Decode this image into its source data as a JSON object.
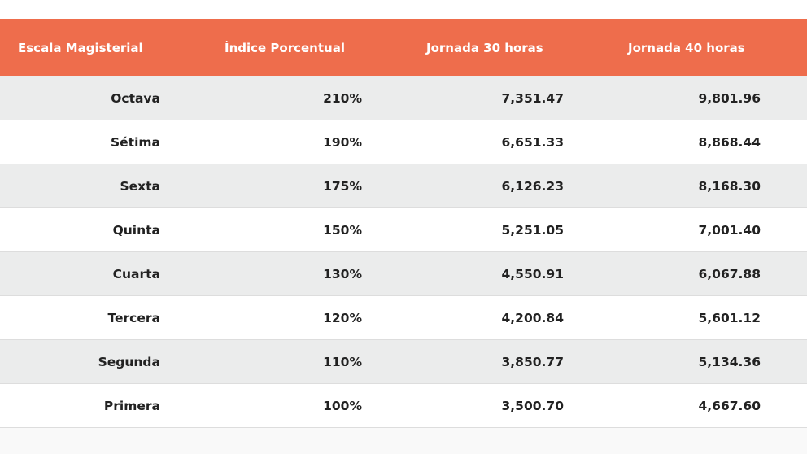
{
  "table": {
    "columns": [
      "Escala Magisterial",
      "Índice Porcentual",
      "Jornada 30 horas",
      "Jornada 40 horas"
    ],
    "rows": [
      [
        "Octava",
        "210%",
        "7,351.47",
        "9,801.96"
      ],
      [
        "Sétima",
        "190%",
        "6,651.33",
        "8,868.44"
      ],
      [
        "Sexta",
        "175%",
        "6,126.23",
        "8,168.30"
      ],
      [
        "Quinta",
        "150%",
        "5,251.05",
        "7,001.40"
      ],
      [
        "Cuarta",
        "130%",
        "4,550.91",
        "6,067.88"
      ],
      [
        "Tercera",
        "120%",
        "4,200.84",
        "5,601.12"
      ],
      [
        "Segunda",
        "110%",
        "3,850.77",
        "5,134.36"
      ],
      [
        "Primera",
        "100%",
        "3,500.70",
        "4,667.60"
      ]
    ]
  }
}
